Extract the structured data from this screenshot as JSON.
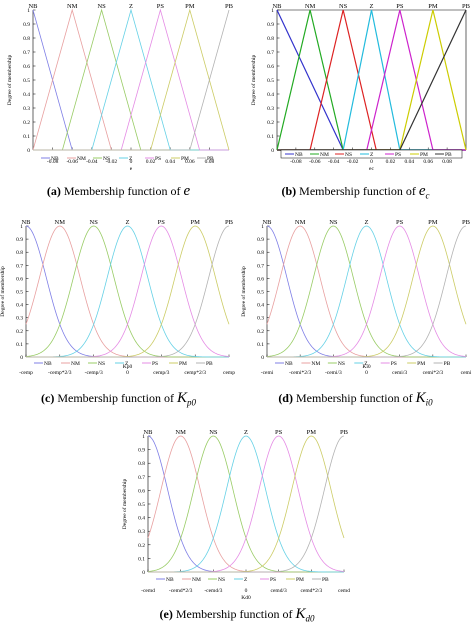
{
  "colors": {
    "NB": "#7f7fe6",
    "NM": "#e8a0a0",
    "NS": "#99cc66",
    "Z": "#66d1e6",
    "PS": "#e58ce5",
    "PM": "#cccc66",
    "PB": "#b3b3b3",
    "strong": {
      "NB": "#3333cc",
      "NM": "#22aa22",
      "NS": "#dd2222",
      "Z": "#22bbdd",
      "PS": "#cc22cc",
      "PM": "#cccc00",
      "PB": "#333333"
    }
  },
  "chart_data": [
    {
      "panel": "a",
      "type": "line",
      "shape": "triangular",
      "ylabel": "Degree of membership",
      "xlabel": "e",
      "xlim": [
        -0.1,
        0.1
      ],
      "ylim": [
        0,
        1
      ],
      "y_ticks": [
        "0",
        "0.1",
        "0.2",
        "0.3",
        "0.4",
        "0.5",
        "0.6",
        "0.7",
        "0.8",
        "0.9",
        "1"
      ],
      "x_ticks": [
        "-0.08",
        "-0.06",
        "-0.04",
        "-0.02",
        "0",
        "0.02",
        "0.04",
        "0.06",
        "0.08"
      ],
      "x_tick_values": [
        -0.08,
        -0.06,
        -0.04,
        -0.02,
        0,
        0.02,
        0.04,
        0.06,
        0.08
      ],
      "series": [
        {
          "name": "NB",
          "peak": -0.1,
          "width": 0.04
        },
        {
          "name": "NM",
          "peak": -0.06,
          "width": 0.04
        },
        {
          "name": "NS",
          "peak": -0.03,
          "width": 0.04
        },
        {
          "name": "Z",
          "peak": 0,
          "width": 0.04
        },
        {
          "name": "PS",
          "peak": 0.03,
          "width": 0.04
        },
        {
          "name": "PM",
          "peak": 0.06,
          "width": 0.04
        },
        {
          "name": "PB",
          "peak": 0.1,
          "width": 0.04
        }
      ],
      "caption": {
        "tag": "(a)",
        "text": "Membership function of",
        "symbol": "e",
        "sub": ""
      }
    },
    {
      "panel": "b",
      "type": "line",
      "shape": "triangular",
      "ylabel": "Degree of membership",
      "xlabel": "ec",
      "xlim": [
        -0.1,
        0.1
      ],
      "ylim": [
        0,
        1
      ],
      "y_ticks": [
        "0",
        "0.1",
        "0.2",
        "0.3",
        "0.4",
        "0.5",
        "0.6",
        "0.7",
        "0.8",
        "0.9",
        "1"
      ],
      "x_ticks": [
        "-0.08",
        "-0.06",
        "-0.04",
        "-0.02",
        "0",
        "0.02",
        "0.04",
        "0.06",
        "0.08"
      ],
      "x_tick_values": [
        -0.08,
        -0.06,
        -0.04,
        -0.02,
        0,
        0.02,
        0.04,
        0.06,
        0.08
      ],
      "series": [
        {
          "name": "NB",
          "peak": -0.1,
          "width": 0.07
        },
        {
          "name": "NM",
          "peak": -0.065,
          "width": 0.035
        },
        {
          "name": "NS",
          "peak": -0.03,
          "width": 0.035
        },
        {
          "name": "Z",
          "peak": 0,
          "width": 0.03
        },
        {
          "name": "PS",
          "peak": 0.03,
          "width": 0.035
        },
        {
          "name": "PM",
          "peak": 0.065,
          "width": 0.035
        },
        {
          "name": "PB",
          "peak": 0.1,
          "width": 0.07
        }
      ],
      "caption": {
        "tag": "(b)",
        "text": "Membership function of",
        "symbol": "e",
        "sub": "c"
      }
    },
    {
      "panel": "c",
      "type": "line",
      "shape": "gaussian",
      "ylabel": "Degree of membership",
      "xlabel": "Kp0",
      "xlim": [
        -1,
        1
      ],
      "ylim": [
        0,
        1
      ],
      "y_ticks": [
        "0",
        "0.1",
        "0.2",
        "0.3",
        "0.4",
        "0.5",
        "0.6",
        "0.7",
        "0.8",
        "0.9",
        "1"
      ],
      "x_ticks": [
        "-cemp",
        "-cemp*2/3",
        "-cemp/3",
        "0",
        "cemp/3",
        "cemp*2/3",
        "cemp"
      ],
      "x_tick_values": [
        -1,
        -0.667,
        -0.333,
        0,
        0.333,
        0.667,
        1
      ],
      "sigma": 0.2,
      "series": [
        {
          "name": "NB",
          "peak": -1
        },
        {
          "name": "NM",
          "peak": -0.667
        },
        {
          "name": "NS",
          "peak": -0.333
        },
        {
          "name": "Z",
          "peak": 0
        },
        {
          "name": "PS",
          "peak": 0.333
        },
        {
          "name": "PM",
          "peak": 0.667
        },
        {
          "name": "PB",
          "peak": 1
        }
      ],
      "caption": {
        "tag": "(c)",
        "text": "Membership function of",
        "symbol": "K",
        "sub": "p0"
      }
    },
    {
      "panel": "d",
      "type": "line",
      "shape": "gaussian",
      "ylabel": "Degree of membership",
      "xlabel": "Ki0",
      "xlim": [
        -1,
        1
      ],
      "ylim": [
        0,
        1
      ],
      "y_ticks": [
        "0",
        "0.1",
        "0.2",
        "0.3",
        "0.4",
        "0.5",
        "0.6",
        "0.7",
        "0.8",
        "0.9",
        "1"
      ],
      "x_ticks": [
        "-cemi",
        "-cemi*2/3",
        "-cemi/3",
        "0",
        "cemi/3",
        "cemi*2/3",
        "cemi"
      ],
      "x_tick_values": [
        -1,
        -0.667,
        -0.333,
        0,
        0.333,
        0.667,
        1
      ],
      "sigma": 0.2,
      "series": [
        {
          "name": "NB",
          "peak": -1
        },
        {
          "name": "NM",
          "peak": -0.667
        },
        {
          "name": "NS",
          "peak": -0.333
        },
        {
          "name": "Z",
          "peak": 0
        },
        {
          "name": "PS",
          "peak": 0.333
        },
        {
          "name": "PM",
          "peak": 0.667
        },
        {
          "name": "PB",
          "peak": 1
        }
      ],
      "caption": {
        "tag": "(d)",
        "text": "Membership function of",
        "symbol": "K",
        "sub": "i0"
      }
    },
    {
      "panel": "e",
      "type": "line",
      "shape": "gaussian",
      "ylabel": "Degree of membership",
      "xlabel": "Kd0",
      "xlim": [
        -1,
        1
      ],
      "ylim": [
        0,
        1
      ],
      "y_ticks": [
        "0",
        "0.1",
        "0.2",
        "0.3",
        "0.4",
        "0.5",
        "0.6",
        "0.7",
        "0.8",
        "0.9",
        "1"
      ],
      "x_ticks": [
        "-cemd",
        "-cemd*2/3",
        "-cemd/3",
        "0",
        "cemd/3",
        "cemd*2/3",
        "cemd"
      ],
      "x_tick_values": [
        -1,
        -0.667,
        -0.333,
        0,
        0.333,
        0.667,
        1
      ],
      "sigma": 0.2,
      "series": [
        {
          "name": "NB",
          "peak": -1
        },
        {
          "name": "NM",
          "peak": -0.667
        },
        {
          "name": "NS",
          "peak": -0.333
        },
        {
          "name": "Z",
          "peak": 0
        },
        {
          "name": "PS",
          "peak": 0.333
        },
        {
          "name": "PM",
          "peak": 0.667
        },
        {
          "name": "PB",
          "peak": 1
        }
      ],
      "caption": {
        "tag": "(e)",
        "text": "Membership function of",
        "symbol": "K",
        "sub": "d0"
      }
    }
  ]
}
